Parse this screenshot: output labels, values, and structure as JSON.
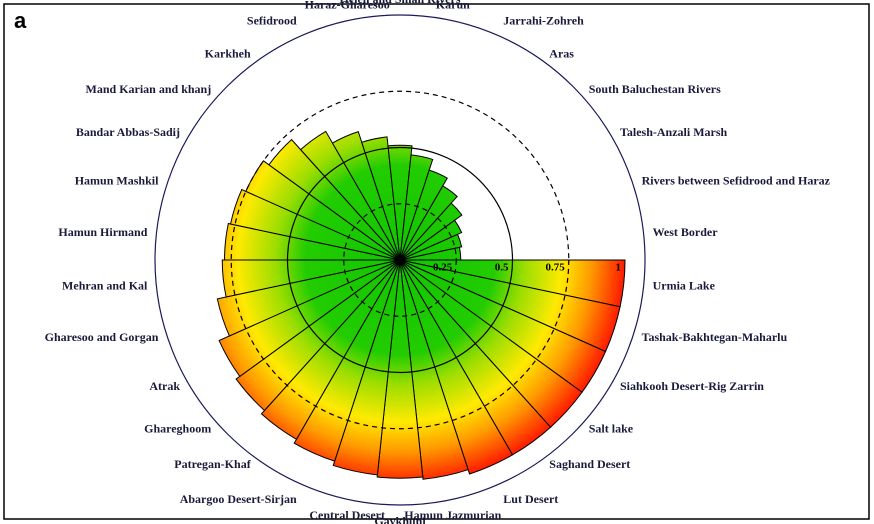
{
  "chart_data": {
    "type": "radial-bar",
    "panel_label": "a",
    "categories": [
      "Urmia Lake",
      "Tashak-Bakhtegan-Maharlu",
      "Siahkooh Desert-Rig Zarrin",
      "Salt lake",
      "Saghand Desert",
      "Lut Desert",
      "Hamun Jazmurian",
      "Gavkhuni",
      "Central Desert",
      "Abargoo Desert-Sirjan",
      "Patregan-Khaf",
      "Ghareghoom",
      "Atrak",
      "Gharesoo and Gorgan",
      "Mehran and Kal",
      "Hamun Hirmand",
      "Hamun Mashkil",
      "Bandar Abbas-Sadij",
      "Mand Karian and khanj",
      "Karkheh",
      "Sefidrood",
      "Haraz-Gharesoo",
      "Heleh and Small Rivers",
      "Karun",
      "Jarrahi-Zohreh",
      "Aras",
      "South Baluchestan Rivers",
      "Talesh-Anzali Marsh",
      "Rivers between Sefidrood and Haraz",
      "West Border"
    ],
    "values": [
      1.0,
      1.0,
      1.0,
      1.0,
      1.0,
      1.0,
      0.98,
      0.97,
      0.96,
      0.94,
      0.92,
      0.9,
      0.88,
      0.83,
      0.79,
      0.78,
      0.77,
      0.75,
      0.72,
      0.66,
      0.6,
      0.55,
      0.51,
      0.47,
      0.42,
      0.38,
      0.34,
      0.3,
      0.28,
      0.27
    ],
    "ylim": [
      0,
      1
    ],
    "yticks": [
      0.25,
      0.5,
      0.75,
      1
    ],
    "grid": true
  }
}
